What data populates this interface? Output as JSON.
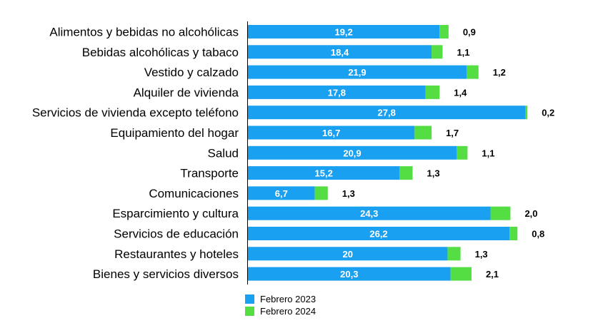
{
  "chart_data": {
    "type": "bar",
    "orientation": "horizontal",
    "stacked": true,
    "categories": [
      "Alimentos y bebidas no alcohólicas",
      "Bebidas alcohólicas y tabaco",
      "Vestido y calzado",
      "Alquiler de vivienda",
      "Servicios de vivienda excepto teléfono",
      "Equipamiento del hogar",
      "Salud",
      "Transporte",
      "Comunicaciones",
      "Esparcimiento y cultura",
      "Servicios de educación",
      "Restaurantes y hoteles",
      "Bienes y servicios diversos"
    ],
    "series": [
      {
        "name": "Febrero 2023",
        "color": "#1aa0f0",
        "values": [
          19.2,
          18.4,
          21.9,
          17.8,
          27.8,
          16.7,
          20.9,
          15.2,
          6.7,
          24.3,
          26.2,
          20,
          20.3
        ],
        "labels": [
          "19,2",
          "18,4",
          "21,9",
          "17,8",
          "27,8",
          "16,7",
          "20,9",
          "15,2",
          "6,7",
          "24,3",
          "26,2",
          "20",
          "20,3"
        ]
      },
      {
        "name": "Febrero 2024",
        "color": "#55dd44",
        "values": [
          0.9,
          1.1,
          1.2,
          1.4,
          0.2,
          1.7,
          1.1,
          1.3,
          1.3,
          2.0,
          0.8,
          1.3,
          2.1
        ],
        "labels": [
          "0,9",
          "1,1",
          "1,2",
          "1,4",
          "0,2",
          "1,7",
          "1,1",
          "1,3",
          "1,3",
          "2,0",
          "0,8",
          "1,3",
          "2,1"
        ]
      }
    ],
    "title": "",
    "xlabel": "",
    "ylabel": "",
    "xlim": [
      0,
      28.2
    ],
    "grid": false,
    "legend_position": "bottom-left"
  }
}
